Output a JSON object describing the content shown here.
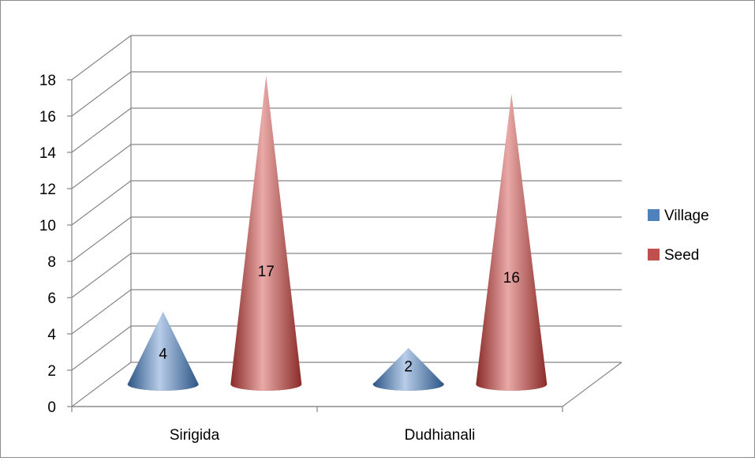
{
  "chart_data": {
    "type": "bar",
    "subtype": "3d-cone",
    "title": "",
    "xlabel": "",
    "ylabel": "",
    "categories": [
      "Sirigida",
      "Dudhianali"
    ],
    "series": [
      {
        "name": "Village",
        "values": [
          4,
          2
        ],
        "color": "#4f81bd"
      },
      {
        "name": "Seed",
        "values": [
          17,
          16
        ],
        "color": "#c0504d"
      }
    ],
    "ylim": [
      0,
      18
    ],
    "yticks": [
      "0",
      "2",
      "4",
      "6",
      "8",
      "10",
      "12",
      "14",
      "16",
      "18"
    ],
    "grid": true,
    "legend_position": "right",
    "data_labels": true
  }
}
